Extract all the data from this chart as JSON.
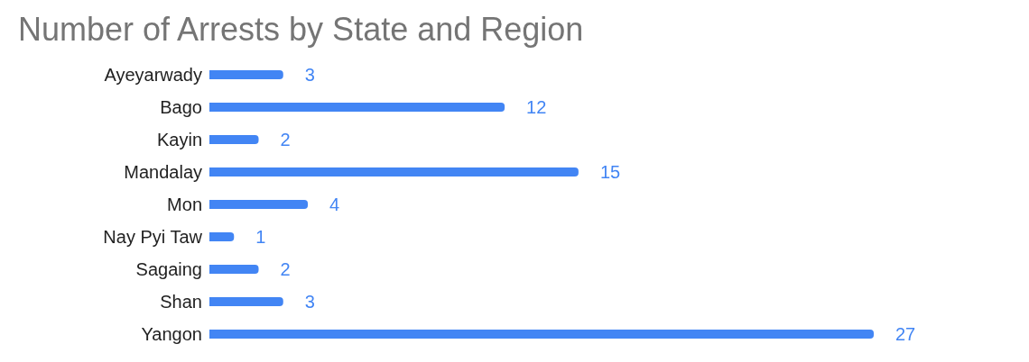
{
  "chart_data": {
    "type": "bar",
    "orientation": "horizontal",
    "title": "Number of Arrests by State and Region",
    "categories": [
      "Ayeyarwady",
      "Bago",
      "Kayin",
      "Mandalay",
      "Mon",
      "Nay Pyi Taw",
      "Sagaing",
      "Shan",
      "Yangon"
    ],
    "values": [
      3,
      12,
      2,
      15,
      4,
      1,
      2,
      3,
      27
    ],
    "color": "#4285f4",
    "data_labels": true,
    "grid": false,
    "legend": false
  }
}
